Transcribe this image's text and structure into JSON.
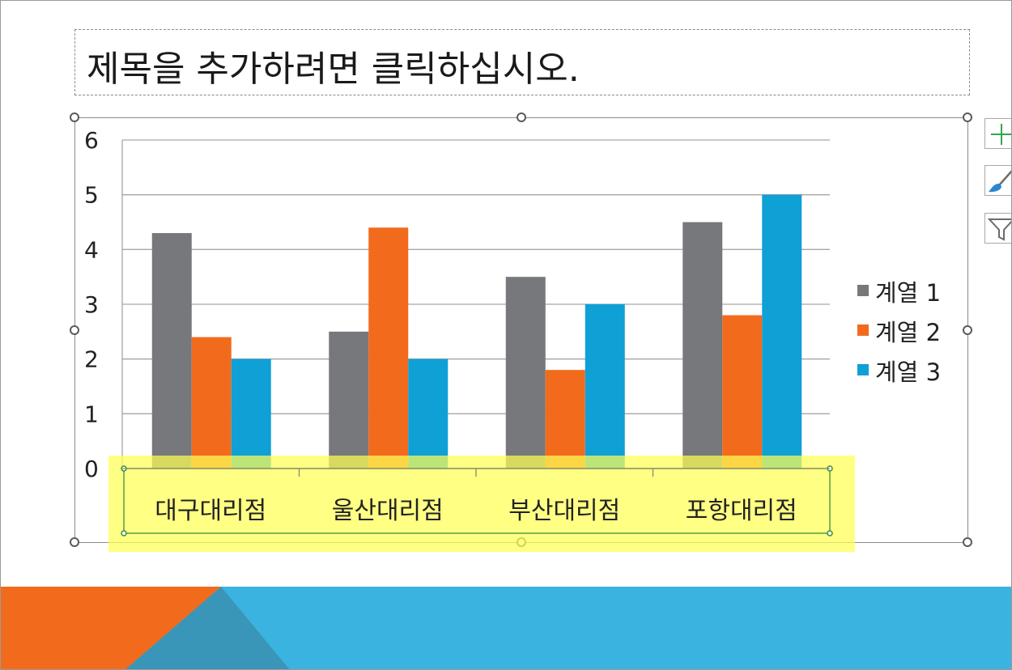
{
  "slide": {
    "title_placeholder": "제목을 추가하려면 클릭하십시오."
  },
  "chart_data": {
    "type": "bar",
    "categories": [
      "대구대리점",
      "울산대리점",
      "부산대리점",
      "포항대리점"
    ],
    "series": [
      {
        "name": "계열 1",
        "values": [
          4.3,
          2.5,
          3.5,
          4.5
        ],
        "color": "#77787b"
      },
      {
        "name": "계열 2",
        "values": [
          2.4,
          4.4,
          1.8,
          2.8
        ],
        "color": "#f26b1d"
      },
      {
        "name": "계열 3",
        "values": [
          2.0,
          2.0,
          3.0,
          5.0
        ],
        "color": "#0fa0d6"
      }
    ],
    "ylim": [
      0,
      6
    ],
    "yticks": [
      "0",
      "1",
      "2",
      "3",
      "4",
      "5",
      "6"
    ],
    "grid": true,
    "legend_position": "right",
    "selected_element": "horizontal category axis"
  },
  "chart_tools": {
    "elements_icon": "plus-icon",
    "styles_icon": "paintbrush-icon",
    "filter_icon": "funnel-icon"
  },
  "colors": {
    "selection_highlight": "#ffff55",
    "footer_orange": "#f26b1d",
    "footer_blue": "#3ab3e0",
    "footer_dark_blue": "#3a96b8"
  }
}
